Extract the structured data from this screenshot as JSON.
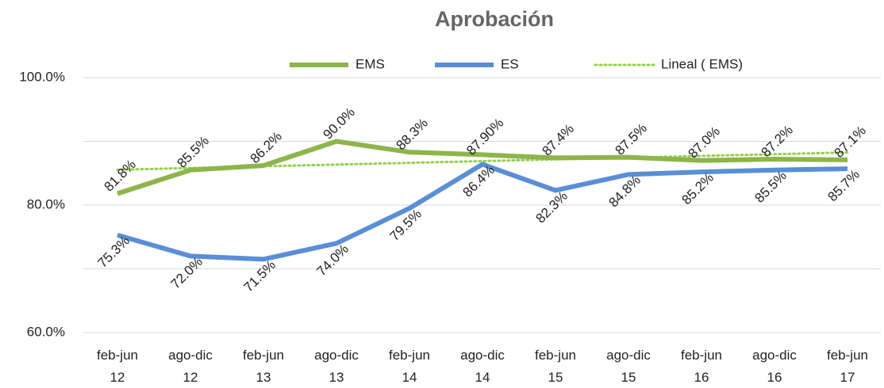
{
  "chart_data": {
    "type": "line",
    "title": "Aprobación",
    "categories": [
      [
        "feb-jun",
        "12"
      ],
      [
        "ago-dic",
        "12"
      ],
      [
        "feb-jun",
        "13"
      ],
      [
        "ago-dic",
        "13"
      ],
      [
        "feb-jun",
        "14"
      ],
      [
        "ago-dic",
        "14"
      ],
      [
        "feb-jun",
        "15"
      ],
      [
        "ago-dic",
        "15"
      ],
      [
        "feb-jun",
        "16"
      ],
      [
        "ago-dic",
        "16"
      ],
      [
        "feb-jun",
        "17"
      ]
    ],
    "series": [
      {
        "name": "EMS",
        "color": "#8db54a",
        "label_position": "above",
        "values": [
          81.8,
          85.5,
          86.2,
          90.0,
          88.3,
          87.9,
          87.4,
          87.5,
          87.0,
          87.2,
          87.1
        ],
        "value_labels": [
          "81.8%",
          "85.5%",
          "86.2%",
          "90.0%",
          "88.3%",
          "87.90%",
          "87.4%",
          "87.5%",
          "87.0%",
          "87.2%",
          "87.1%"
        ]
      },
      {
        "name": "ES",
        "color": "#5a8ed6",
        "label_position": "below",
        "values": [
          75.3,
          72.0,
          71.5,
          74.0,
          79.5,
          86.4,
          82.3,
          84.8,
          85.2,
          85.5,
          85.7
        ],
        "value_labels": [
          "75.3%",
          "72.0%",
          "71.5%",
          "74.0%",
          "79.5%",
          "86.4%",
          "82.3%",
          "84.8%",
          "85.2%",
          "85.5%",
          "85.7%"
        ]
      }
    ],
    "trendline": {
      "name": "Lineal ( EMS)",
      "series": 0,
      "kind": "linear",
      "color": "#92d050"
    },
    "ylim": [
      60,
      100
    ],
    "yticks": [
      {
        "value": 60,
        "label": "60.0%"
      },
      {
        "value": 80,
        "label": "80.0%"
      },
      {
        "value": 100,
        "label": "100.0%"
      }
    ],
    "minor_yticks": [
      70,
      90
    ],
    "grid": true,
    "legend": "top"
  }
}
